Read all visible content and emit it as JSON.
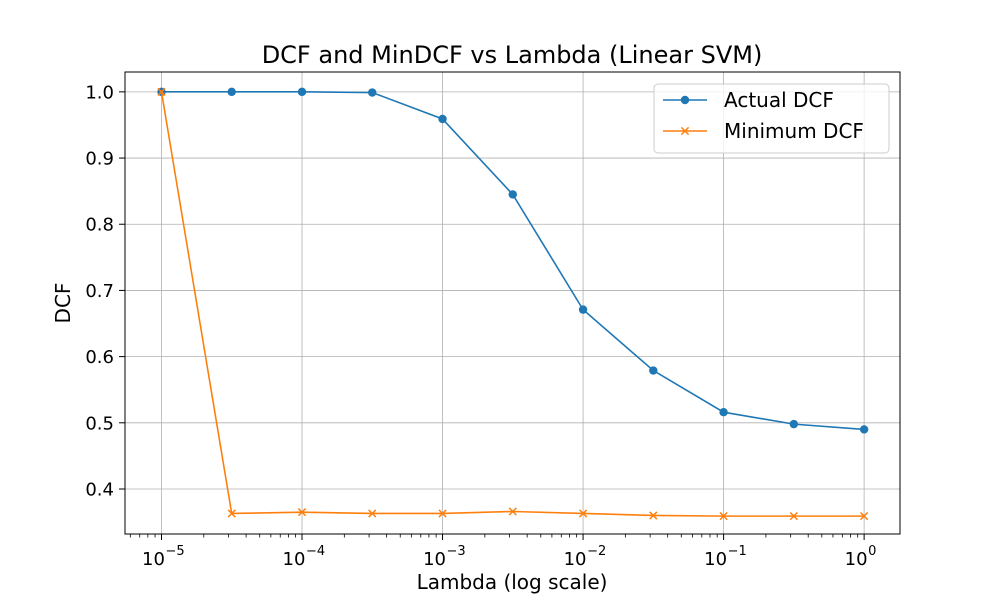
{
  "chart_data": {
    "type": "line",
    "title": "DCF and MinDCF vs Lambda (Linear SVM)",
    "xlabel": "Lambda (log scale)",
    "ylabel": "DCF",
    "x_scale": "log",
    "x": [
      1e-05,
      3.16e-05,
      0.0001,
      0.000316,
      0.001,
      0.00316,
      0.01,
      0.0316,
      0.1,
      0.316,
      1
    ],
    "xlim": [
      5.5e-06,
      1.8
    ],
    "ylim": [
      0.332,
      1.03
    ],
    "x_ticks": [
      {
        "value": 1e-05,
        "base": "10",
        "exp": "−5"
      },
      {
        "value": 0.0001,
        "base": "10",
        "exp": "−4"
      },
      {
        "value": 0.001,
        "base": "10",
        "exp": "−3"
      },
      {
        "value": 0.01,
        "base": "10",
        "exp": "−2"
      },
      {
        "value": 0.1,
        "base": "10",
        "exp": "−1"
      },
      {
        "value": 1,
        "base": "10",
        "exp": "0"
      }
    ],
    "y_ticks": [
      {
        "value": 0.4,
        "label": "0.4"
      },
      {
        "value": 0.5,
        "label": "0.5"
      },
      {
        "value": 0.6,
        "label": "0.6"
      },
      {
        "value": 0.7,
        "label": "0.7"
      },
      {
        "value": 0.8,
        "label": "0.8"
      },
      {
        "value": 0.9,
        "label": "0.9"
      },
      {
        "value": 1.0,
        "label": "1.0"
      }
    ],
    "grid": true,
    "legend_position": "top-right",
    "series": [
      {
        "name": "Actual DCF",
        "marker": "circle",
        "color": "#1f77b4",
        "values": [
          1.0,
          1.0,
          1.0,
          0.999,
          0.959,
          0.845,
          0.671,
          0.579,
          0.516,
          0.498,
          0.49
        ]
      },
      {
        "name": "Minimum DCF",
        "marker": "x",
        "color": "#ff7f0e",
        "values": [
          1.0,
          0.363,
          0.365,
          0.363,
          0.363,
          0.366,
          0.363,
          0.36,
          0.359,
          0.359,
          0.359
        ]
      }
    ]
  }
}
